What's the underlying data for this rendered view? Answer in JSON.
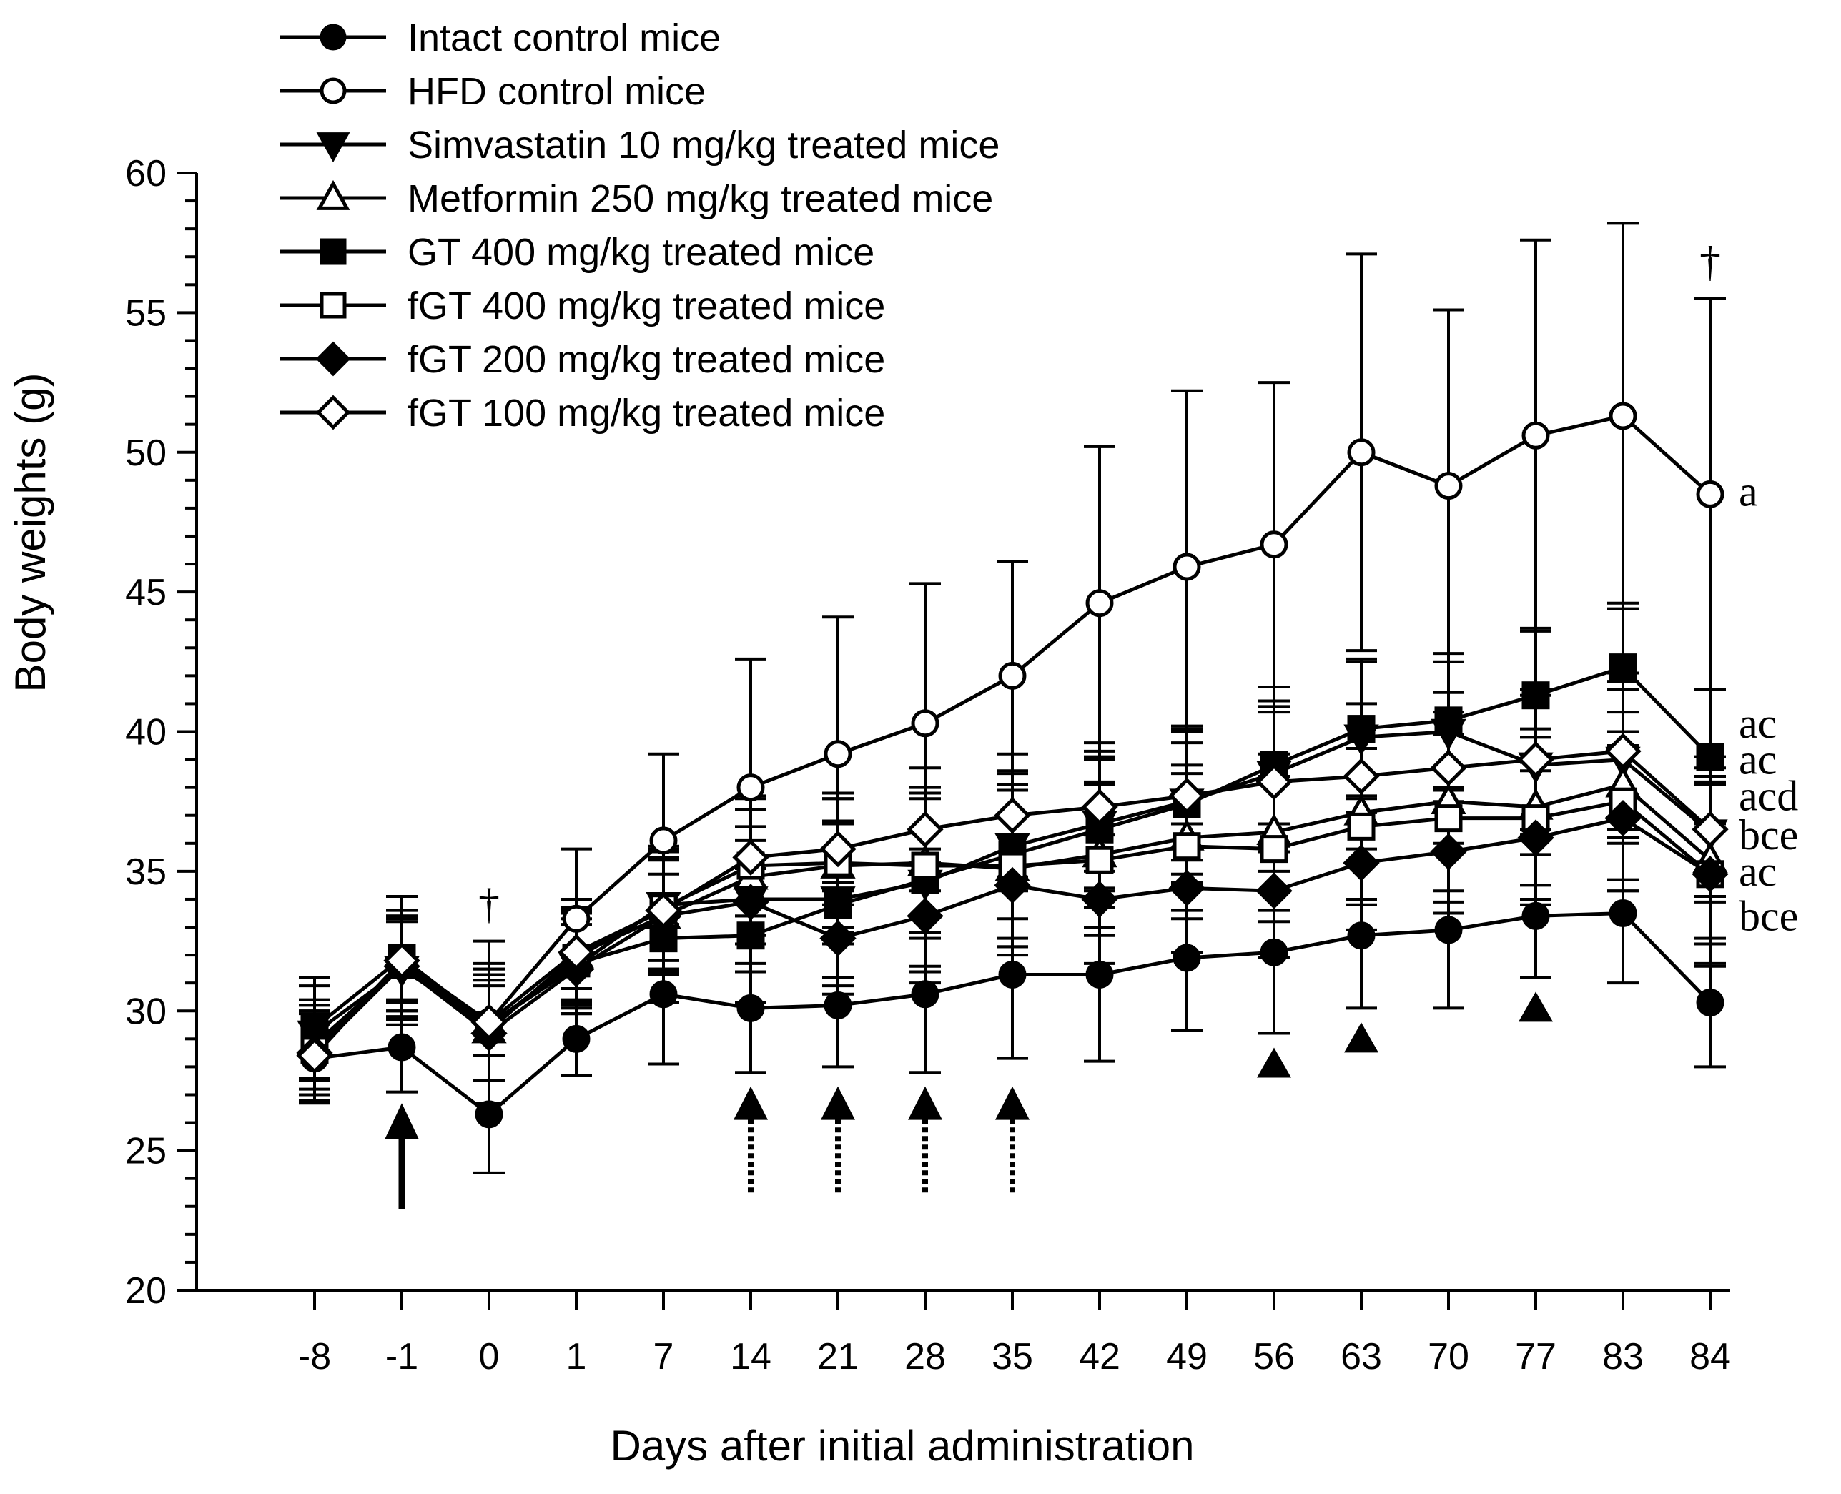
{
  "chart_data": {
    "type": "line",
    "title": "",
    "xlabel": "Days after initial administration",
    "ylabel": "Body weights (g)",
    "ylim": [
      20,
      60
    ],
    "yticks": [
      20,
      25,
      30,
      35,
      40,
      45,
      50,
      55,
      60
    ],
    "y_minor_step": 1,
    "categories": [
      "-8",
      "-1",
      "0",
      "1",
      "7",
      "14",
      "21",
      "28",
      "35",
      "42",
      "49",
      "56",
      "63",
      "70",
      "77",
      "83",
      "84"
    ],
    "legend_position": "top-left",
    "series": [
      {
        "name": "Intact control mice",
        "marker": "circle",
        "fill": "black",
        "values": [
          28.3,
          28.7,
          26.3,
          29.0,
          30.6,
          30.1,
          30.2,
          30.6,
          31.3,
          31.3,
          31.9,
          32.1,
          32.7,
          32.9,
          33.4,
          33.5,
          30.3
        ],
        "errors": [
          1.6,
          1.6,
          2.1,
          1.3,
          2.5,
          2.3,
          2.2,
          2.8,
          3.0,
          3.1,
          2.6,
          2.9,
          2.6,
          2.8,
          2.2,
          2.5,
          2.3
        ]
      },
      {
        "name": "HFD control mice",
        "marker": "circle",
        "fill": "white",
        "values": [
          28.5,
          31.8,
          29.6,
          33.3,
          36.1,
          38.0,
          39.2,
          40.3,
          42.0,
          44.6,
          45.9,
          46.7,
          50.0,
          48.8,
          50.6,
          51.3,
          48.5
        ],
        "errors": [
          1.5,
          2.3,
          2.9,
          2.5,
          3.1,
          4.6,
          4.9,
          5.0,
          4.1,
          5.6,
          6.3,
          5.8,
          7.1,
          6.3,
          7.0,
          6.9,
          7.0
        ]
      },
      {
        "name": "Simvastatin 10 mg/kg treated mice",
        "marker": "triangle-down",
        "fill": "black",
        "values": [
          29.2,
          31.5,
          29.5,
          31.6,
          33.8,
          34.0,
          34.0,
          34.6,
          35.9,
          36.7,
          37.5,
          38.5,
          39.8,
          40.0,
          38.8,
          39.0,
          36.4
        ],
        "errors": [
          1.7,
          1.8,
          2.0,
          1.7,
          2.0,
          2.6,
          2.8,
          3.0,
          2.6,
          2.4,
          2.6,
          2.6,
          2.7,
          2.5,
          2.5,
          2.8,
          2.3
        ]
      },
      {
        "name": "Metformin 250 mg/kg treated mice",
        "marker": "triangle-up",
        "fill": "white",
        "values": [
          28.8,
          31.6,
          29.3,
          32.0,
          33.4,
          34.8,
          35.2,
          35.3,
          35.1,
          35.6,
          36.2,
          36.4,
          37.1,
          37.5,
          37.3,
          38.1,
          35.4
        ],
        "errors": [
          1.6,
          1.8,
          1.8,
          1.6,
          2.1,
          2.4,
          2.4,
          2.5,
          2.8,
          2.6,
          2.6,
          2.8,
          3.1,
          3.2,
          2.8,
          3.4,
          3.0
        ]
      },
      {
        "name": "GT 400 mg/kg treated mice",
        "marker": "square",
        "fill": "black",
        "values": [
          29.4,
          31.9,
          29.5,
          31.7,
          32.6,
          32.7,
          33.8,
          34.7,
          35.6,
          36.5,
          37.4,
          38.8,
          40.1,
          40.4,
          41.3,
          42.3,
          39.1
        ],
        "errors": [
          1.8,
          1.5,
          2.0,
          1.8,
          2.3,
          2.4,
          2.9,
          3.3,
          3.0,
          2.8,
          2.8,
          2.8,
          2.5,
          2.4,
          2.4,
          2.3,
          2.4
        ]
      },
      {
        "name": "fGT 400 mg/kg treated mice",
        "marker": "square",
        "fill": "white",
        "values": [
          28.6,
          31.7,
          29.4,
          31.9,
          33.7,
          35.2,
          35.3,
          35.2,
          35.2,
          35.4,
          35.9,
          35.8,
          36.6,
          36.9,
          36.9,
          37.5,
          34.9
        ],
        "errors": [
          1.6,
          1.7,
          1.9,
          1.8,
          2.2,
          2.5,
          2.3,
          2.6,
          2.9,
          2.7,
          2.6,
          2.6,
          2.8,
          3.0,
          2.9,
          3.2,
          3.2
        ]
      },
      {
        "name": "fGT 200 mg/kg treated mice",
        "marker": "diamond",
        "fill": "black",
        "values": [
          28.5,
          31.6,
          29.2,
          31.5,
          33.4,
          33.9,
          32.6,
          33.4,
          34.5,
          34.0,
          34.4,
          34.3,
          35.3,
          35.7,
          36.2,
          36.9,
          34.9
        ],
        "errors": [
          1.5,
          1.6,
          1.7,
          1.6,
          2.0,
          2.2,
          2.0,
          2.4,
          2.5,
          2.3,
          2.3,
          2.4,
          2.4,
          2.2,
          2.4,
          2.6,
          3.3
        ]
      },
      {
        "name": "fGT 100 mg/kg treated mice",
        "marker": "diamond",
        "fill": "white",
        "values": [
          28.4,
          31.8,
          29.6,
          32.1,
          33.6,
          35.5,
          35.8,
          36.5,
          37.0,
          37.3,
          37.7,
          38.2,
          38.4,
          38.7,
          39.0,
          39.3,
          36.5
        ],
        "errors": [
          1.6,
          1.8,
          2.1,
          1.9,
          2.1,
          2.1,
          2.0,
          2.2,
          2.2,
          2.3,
          2.3,
          2.5,
          2.6,
          2.7,
          2.5,
          2.8,
          2.6
        ]
      }
    ],
    "annotations": {
      "dagger": "†",
      "dagger_days": [
        "0",
        "84"
      ],
      "right_letters": [
        {
          "text": "a",
          "y": 48.6
        },
        {
          "text": "ac",
          "y": 40.3
        },
        {
          "text": "ac",
          "y": 39.0
        },
        {
          "text": "acd",
          "y": 37.7
        },
        {
          "text": "bce",
          "y": 36.3
        },
        {
          "text": "ac",
          "y": 35.0
        },
        {
          "text": "bce",
          "y": 33.4
        }
      ],
      "solid_arrow_day": "-1",
      "dotted_arrow_days": [
        "14",
        "21",
        "28",
        "35"
      ],
      "triangle_marker_days": [
        "56",
        "63",
        "77"
      ]
    }
  }
}
